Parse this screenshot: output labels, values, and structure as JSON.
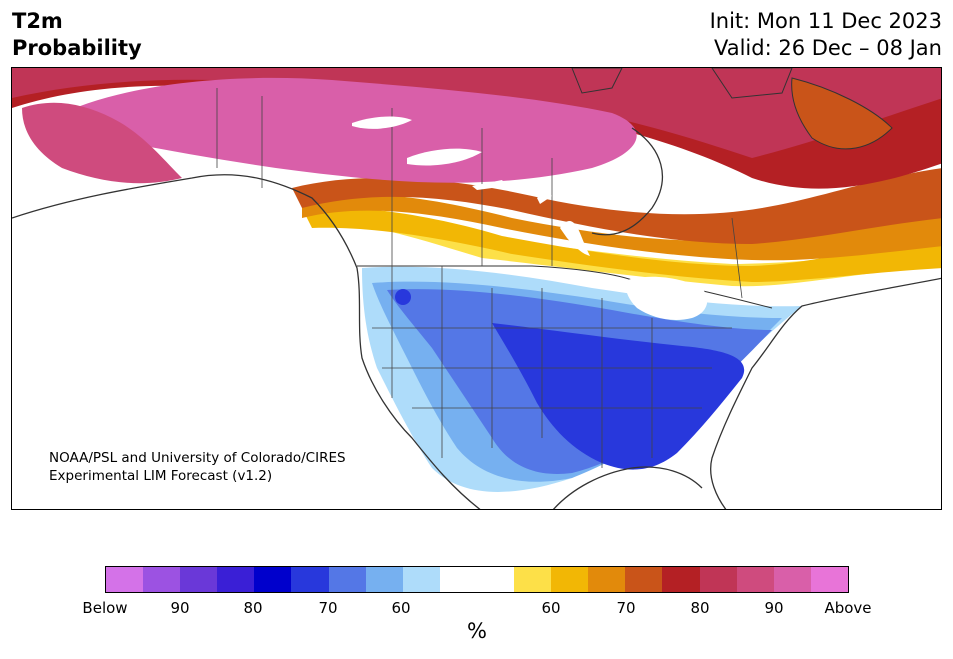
{
  "header": {
    "variable": "T2m",
    "product": "Probability",
    "init": "Init: Mon 11 Dec 2023",
    "valid": "Valid: 26 Dec – 08 Jan"
  },
  "credit": {
    "line1": "NOAA/PSL and University of Colorado/CIRES",
    "line2": "Experimental LIM Forecast (v1.2)"
  },
  "colorbar": {
    "colors": [
      "#d472e8",
      "#9c52e2",
      "#6a38d8",
      "#3a1fd6",
      "#0000cc",
      "#2838dc",
      "#5477e6",
      "#76b0f0",
      "#aedcfa",
      "#ffffff",
      "#ffffff",
      "#fde048",
      "#f2b705",
      "#e28a0b",
      "#c95419",
      "#b42024",
      "#c03556",
      "#cf4b7e",
      "#d95fa9",
      "#e874d8"
    ],
    "labels": [
      "Below",
      "90",
      "80",
      "70",
      "60",
      "60",
      "70",
      "80",
      "90",
      "Above"
    ],
    "unit": "%"
  },
  "map": {
    "region": "North America",
    "warm_signal": "Canada and Alaska above normal",
    "cold_signal": "Contiguous United States below normal"
  }
}
